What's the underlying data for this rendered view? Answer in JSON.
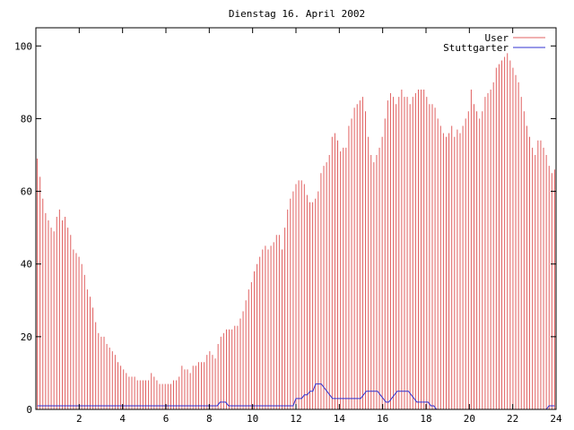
{
  "chart_data": {
    "type": "bar",
    "title": "Dienstag 16. April 2002",
    "xlabel": "",
    "ylabel": "",
    "xlim": [
      0,
      24
    ],
    "ylim": [
      0,
      105
    ],
    "x_ticks": [
      "2",
      "4",
      "6",
      "8",
      "10",
      "12",
      "14",
      "16",
      "18",
      "20",
      "22",
      "24"
    ],
    "y_ticks": [
      "0",
      "20",
      "40",
      "60",
      "80",
      "100"
    ],
    "grid": false,
    "legend_position": "top-right",
    "series": [
      {
        "name": "User",
        "style": "impulses",
        "color": "#e06060",
        "values": [
          69,
          64,
          58,
          54,
          52,
          50,
          49,
          53,
          55,
          52,
          53,
          50,
          48,
          44,
          43,
          42,
          40,
          37,
          33,
          31,
          28,
          24,
          21,
          20,
          20,
          18,
          17,
          16,
          15,
          13,
          12,
          11,
          10,
          9,
          9,
          9,
          8,
          8,
          8,
          8,
          8,
          10,
          9,
          8,
          7,
          7,
          7,
          7,
          7,
          8,
          8,
          9,
          12,
          11,
          11,
          10,
          12,
          12,
          13,
          13,
          13,
          15,
          16,
          15,
          14,
          18,
          20,
          21,
          22,
          22,
          22,
          23,
          23,
          25,
          27,
          30,
          33,
          35,
          38,
          40,
          42,
          44,
          45,
          44,
          45,
          46,
          48,
          48,
          44,
          50,
          55,
          58,
          60,
          62,
          63,
          63,
          62,
          59,
          57,
          57,
          58,
          60,
          65,
          67,
          68,
          70,
          75,
          76,
          74,
          71,
          72,
          72,
          78,
          80,
          83,
          84,
          85,
          86,
          82,
          75,
          70,
          68,
          70,
          72,
          75,
          80,
          85,
          87,
          86,
          84,
          86,
          88,
          86,
          86,
          84,
          86,
          87,
          88,
          88,
          88,
          86,
          84,
          84,
          83,
          80,
          78,
          76,
          75,
          76,
          78,
          75,
          77,
          76,
          78,
          80,
          82,
          88,
          84,
          82,
          80,
          82,
          86,
          87,
          88,
          90,
          94,
          95,
          96,
          97,
          98,
          96,
          94,
          92,
          90,
          86,
          82,
          78,
          75,
          72,
          70,
          74,
          74,
          72,
          70,
          67,
          65,
          66
        ]
      },
      {
        "name": "Stuttgarter",
        "style": "line",
        "color": "#3030d0",
        "values": [
          1,
          1,
          1,
          1,
          1,
          1,
          1,
          1,
          1,
          1,
          1,
          1,
          1,
          1,
          1,
          1,
          1,
          1,
          1,
          1,
          1,
          1,
          1,
          1,
          1,
          1,
          1,
          1,
          1,
          1,
          1,
          1,
          1,
          1,
          1,
          1,
          1,
          1,
          1,
          1,
          1,
          1,
          1,
          1,
          1,
          1,
          1,
          1,
          1,
          1,
          1,
          1,
          1,
          1,
          1,
          1,
          1,
          1,
          1,
          1,
          1,
          1,
          1,
          1,
          1,
          2,
          2,
          2,
          1,
          1,
          1,
          1,
          1,
          1,
          1,
          1,
          1,
          1,
          1,
          1,
          1,
          1,
          1,
          1,
          1,
          1,
          1,
          1,
          1,
          1,
          1,
          1,
          3,
          3,
          3,
          4,
          4,
          5,
          5,
          7,
          7,
          7,
          6,
          5,
          4,
          3,
          3,
          3,
          3,
          3,
          3,
          3,
          3,
          3,
          3,
          3,
          4,
          5,
          5,
          5,
          5,
          5,
          4,
          3,
          2,
          2,
          3,
          4,
          5,
          5,
          5,
          5,
          5,
          4,
          3,
          2,
          2,
          2,
          2,
          2,
          1,
          1,
          0,
          0,
          0,
          0,
          0,
          0,
          0,
          0,
          0,
          0,
          0,
          0,
          0,
          0,
          0,
          0,
          0,
          0,
          0,
          0,
          0,
          0,
          0,
          0,
          0,
          0,
          0,
          0,
          0,
          0,
          0,
          0,
          0,
          0,
          0,
          0,
          0,
          0,
          0,
          0,
          1,
          1,
          1
        ]
      }
    ]
  }
}
